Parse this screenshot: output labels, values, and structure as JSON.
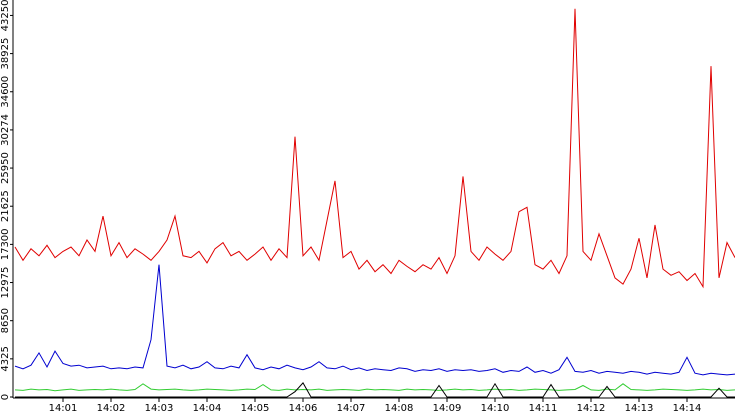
{
  "chart_data": {
    "type": "line",
    "x": [
      0,
      10,
      20,
      30,
      40,
      50,
      60,
      70,
      80,
      90,
      100,
      110,
      120,
      130,
      140,
      150,
      160,
      170,
      180,
      190,
      200,
      210,
      220,
      230,
      240,
      250,
      260,
      270,
      280,
      290,
      300,
      310,
      320,
      330,
      340,
      350,
      360,
      370,
      380,
      390,
      400,
      410,
      420,
      430,
      440,
      450,
      460,
      470,
      480,
      490,
      500,
      510,
      520,
      530,
      540,
      550,
      560,
      570,
      580,
      590,
      600,
      610,
      620,
      630,
      640,
      650,
      660,
      670,
      680,
      690,
      700,
      710,
      720,
      730,
      740,
      750,
      760,
      770,
      780,
      790,
      800,
      810,
      820,
      830,
      840,
      850,
      860,
      870,
      880,
      890,
      900
    ],
    "xlim": [
      0,
      900
    ],
    "xticks": [
      {
        "value": 60,
        "label": "14:01"
      },
      {
        "value": 120,
        "label": "14:02"
      },
      {
        "value": 180,
        "label": "14:03"
      },
      {
        "value": 240,
        "label": "14:04"
      },
      {
        "value": 300,
        "label": "14:05"
      },
      {
        "value": 360,
        "label": "14:06"
      },
      {
        "value": 420,
        "label": "14:07"
      },
      {
        "value": 480,
        "label": "14:08"
      },
      {
        "value": 540,
        "label": "14:09"
      },
      {
        "value": 600,
        "label": "14:10"
      },
      {
        "value": 660,
        "label": "14:11"
      },
      {
        "value": 720,
        "label": "14:12"
      },
      {
        "value": 780,
        "label": "14:13"
      },
      {
        "value": 840,
        "label": "14:14"
      }
    ],
    "ylim": [
      0,
      45000
    ],
    "yticks": [
      0,
      4325,
      8650,
      12975,
      17300,
      21625,
      25950,
      30274,
      34600,
      38925,
      43250
    ],
    "series": [
      {
        "color": "#e00000",
        "values": [
          17000,
          15500,
          16800,
          16000,
          17200,
          15800,
          16500,
          17000,
          16000,
          17800,
          16500,
          20500,
          16000,
          17500,
          15800,
          16800,
          16200,
          15500,
          16500,
          17800,
          20500,
          16000,
          15800,
          16500,
          15200,
          16800,
          17500,
          16000,
          16500,
          15500,
          16200,
          17000,
          15500,
          16800,
          15800,
          29500,
          16000,
          17000,
          15500,
          20000,
          24500,
          15800,
          16500,
          14500,
          15500,
          14200,
          15000,
          14000,
          15500,
          14800,
          14200,
          15000,
          14500,
          15800,
          14000,
          16000,
          25000,
          16500,
          15500,
          17000,
          16200,
          15500,
          16500,
          21000,
          21500,
          15000,
          14500,
          15500,
          14000,
          16000,
          44000,
          16500,
          15500,
          18500,
          16000,
          13500,
          12800,
          14500,
          18000,
          13500,
          19500,
          14500,
          13800,
          14200,
          13200,
          14000,
          12500,
          37500,
          13500,
          17500,
          15800
        ]
      },
      {
        "color": "#0000d0",
        "values": [
          3500,
          3200,
          3600,
          5000,
          3400,
          5200,
          3800,
          3500,
          3600,
          3300,
          3400,
          3500,
          3200,
          3300,
          3200,
          3400,
          3300,
          6500,
          15000,
          3500,
          3300,
          3600,
          3200,
          3400,
          4000,
          3300,
          3200,
          3500,
          3300,
          4800,
          3300,
          3100,
          3400,
          3200,
          3600,
          3300,
          3100,
          3400,
          4000,
          3300,
          3200,
          3500,
          3100,
          3300,
          3000,
          3200,
          3100,
          3000,
          3300,
          3200,
          2900,
          3100,
          3000,
          3200,
          2900,
          3100,
          3000,
          3100,
          2900,
          3000,
          3200,
          2800,
          3000,
          2900,
          3400,
          2800,
          3000,
          2700,
          3100,
          4500,
          2900,
          2800,
          3000,
          2700,
          2900,
          2800,
          2700,
          2900,
          2800,
          2600,
          2800,
          2700,
          2600,
          2800,
          4500,
          2700,
          2500,
          2700,
          2600,
          2500,
          2600
        ]
      },
      {
        "color": "#33cc33",
        "values": [
          800,
          750,
          900,
          800,
          850,
          700,
          800,
          900,
          750,
          800,
          850,
          800,
          900,
          800,
          750,
          850,
          1500,
          900,
          800,
          850,
          900,
          800,
          750,
          800,
          900,
          850,
          800,
          750,
          800,
          900,
          850,
          1400,
          800,
          750,
          900,
          800,
          850,
          800,
          900,
          750,
          800,
          850,
          800,
          750,
          900,
          800,
          850,
          800,
          750,
          900,
          800,
          850,
          800,
          750,
          800,
          900,
          800,
          850,
          750,
          800,
          900,
          800,
          850,
          750,
          800,
          900,
          850,
          800,
          750,
          800,
          850,
          1300,
          800,
          750,
          900,
          800,
          1500,
          850,
          800,
          750,
          800,
          900,
          850,
          800,
          750,
          800,
          900,
          800,
          850,
          750,
          800
        ]
      },
      {
        "color": "#000000",
        "values": [
          0,
          0,
          0,
          0,
          0,
          0,
          0,
          0,
          0,
          0,
          0,
          0,
          0,
          0,
          0,
          0,
          0,
          0,
          0,
          0,
          0,
          0,
          0,
          0,
          0,
          0,
          0,
          0,
          0,
          0,
          0,
          0,
          0,
          0,
          0,
          600,
          1600,
          0,
          0,
          0,
          0,
          0,
          0,
          0,
          0,
          0,
          0,
          0,
          0,
          0,
          0,
          0,
          0,
          1300,
          0,
          0,
          0,
          0,
          0,
          0,
          1500,
          0,
          0,
          0,
          0,
          0,
          0,
          1400,
          0,
          0,
          0,
          0,
          0,
          0,
          1200,
          0,
          0,
          0,
          0,
          0,
          0,
          0,
          0,
          0,
          0,
          0,
          0,
          0,
          1000,
          0,
          0
        ]
      }
    ]
  }
}
